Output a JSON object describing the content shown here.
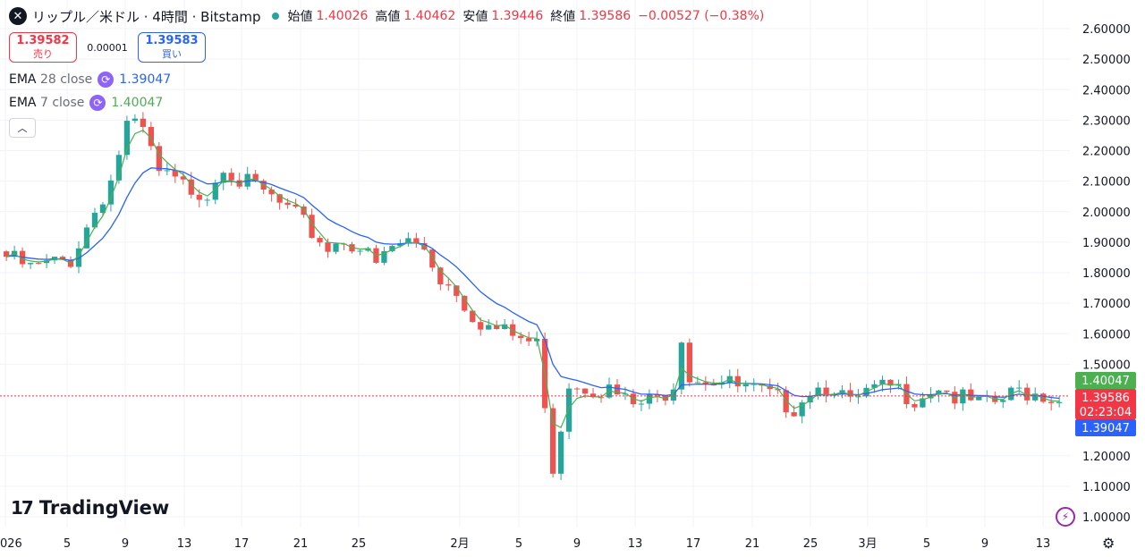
{
  "header": {
    "symbol_icon": "x-icon",
    "title": "リップル／米ドル · 4時間 · Bitstamp",
    "status_color": "#26a69a",
    "ohlc": [
      {
        "label": "始値",
        "value": "1.40026"
      },
      {
        "label": "高値",
        "value": "1.40462"
      },
      {
        "label": "安値",
        "value": "1.39446"
      },
      {
        "label": "終値",
        "value": "1.39586"
      },
      {
        "label": "",
        "value": "−0.00527 (−0.38%)"
      }
    ]
  },
  "trade": {
    "sell_price": "1.39582",
    "sell_label": "売り",
    "spread": "0.00001",
    "buy_price": "1.39583",
    "buy_label": "買い"
  },
  "indicators": [
    {
      "name": "EMA",
      "params": "28 close",
      "value": "1.39047",
      "color": "#2962ff"
    },
    {
      "name": "EMA",
      "params": "7 close",
      "value": "1.40047",
      "color": "#4caf50"
    }
  ],
  "collapse_icon": "chevron-up-icon",
  "branding": {
    "logo": "TradingView"
  },
  "price_labels": {
    "ema7": "1.40047",
    "last": "1.39586",
    "countdown": "02:23:04",
    "ema28": "1.39047"
  },
  "colors": {
    "up": "#26a69a",
    "down": "#ef5350",
    "ema7": "#4caf50",
    "ema28": "#2962ff",
    "last": "#f23645"
  },
  "chart_data": {
    "type": "candlestick",
    "y_ticks": [
      "2.60000",
      "2.50000",
      "2.40000",
      "2.30000",
      "2.20000",
      "2.10000",
      "2.00000",
      "1.90000",
      "1.80000",
      "1.70000",
      "1.60000",
      "1.50000",
      "1.20000",
      "1.10000",
      "1.00000"
    ],
    "x_ticks": [
      "026",
      "5",
      "9",
      "13",
      "17",
      "21",
      "25",
      "2月",
      "5",
      "9",
      "13",
      "17",
      "21",
      "25",
      "3月",
      "5",
      "9",
      "13"
    ],
    "ylim": [
      0.96,
      2.62
    ],
    "last_price": 1.39586,
    "series": [
      {
        "name": "EMA 28 close",
        "last": 1.39047
      },
      {
        "name": "EMA 7 close",
        "last": 1.40047
      }
    ],
    "price_path": [
      [
        0,
        1.87
      ],
      [
        3,
        1.83
      ],
      [
        8,
        1.86
      ],
      [
        11,
        2.02
      ],
      [
        13,
        2.12
      ],
      [
        15,
        2.3
      ],
      [
        17,
        2.28
      ],
      [
        19,
        2.14
      ],
      [
        22,
        2.1
      ],
      [
        25,
        2.08
      ],
      [
        27,
        2.18
      ],
      [
        29,
        2.12
      ],
      [
        32,
        2.08
      ],
      [
        34,
        2.04
      ],
      [
        36,
        2.0
      ],
      [
        38,
        1.95
      ],
      [
        40,
        1.9
      ],
      [
        42,
        1.93
      ],
      [
        44,
        1.9
      ],
      [
        46,
        1.84
      ],
      [
        48,
        1.9
      ],
      [
        50,
        1.92
      ],
      [
        52,
        1.9
      ],
      [
        54,
        1.8
      ],
      [
        56,
        1.76
      ],
      [
        58,
        1.68
      ],
      [
        60,
        1.64
      ],
      [
        62,
        1.62
      ],
      [
        64,
        1.6
      ],
      [
        66,
        1.58
      ],
      [
        67,
        1.4
      ],
      [
        68,
        1.18
      ],
      [
        69,
        1.32
      ],
      [
        70,
        1.46
      ],
      [
        72,
        1.45
      ],
      [
        75,
        1.43
      ],
      [
        78,
        1.38
      ],
      [
        81,
        1.4
      ],
      [
        83,
        1.46
      ],
      [
        84,
        1.62
      ],
      [
        85,
        1.48
      ],
      [
        88,
        1.47
      ],
      [
        91,
        1.44
      ],
      [
        94,
        1.42
      ],
      [
        96,
        1.4
      ],
      [
        98,
        1.38
      ],
      [
        100,
        1.44
      ],
      [
        103,
        1.45
      ],
      [
        105,
        1.38
      ],
      [
        107,
        1.42
      ],
      [
        110,
        1.44
      ],
      [
        113,
        1.41
      ],
      [
        116,
        1.45
      ],
      [
        118,
        1.41
      ],
      [
        120,
        1.39
      ],
      [
        122,
        1.38
      ],
      [
        124,
        1.4
      ],
      [
        126,
        1.43
      ],
      [
        129,
        1.42
      ],
      [
        131,
        1.4
      ]
    ],
    "candle_count": 132
  }
}
